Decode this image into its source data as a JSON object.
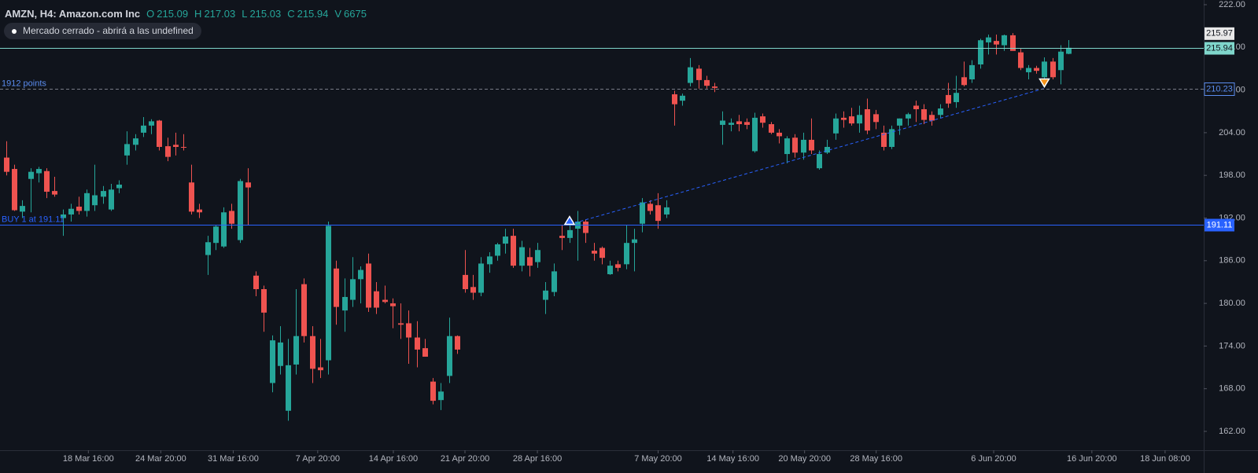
{
  "header": {
    "symbol": "AMZN, H4: Amazon.com Inc",
    "ohlc": [
      {
        "key": "O",
        "value": "215.09"
      },
      {
        "key": "H",
        "value": "217.03"
      },
      {
        "key": "L",
        "value": "215.03"
      },
      {
        "key": "C",
        "value": "215.94"
      },
      {
        "key": "V",
        "value": "6675"
      }
    ],
    "status": "Mercado cerrado - abrirá a las undefined"
  },
  "chart_data": {
    "type": "candlestick",
    "up_color": "#26a69a",
    "down_color": "#ef5350",
    "ohlc": [
      [
        200.5,
        202.8,
        198.0,
        198.5
      ],
      [
        198.9,
        199.5,
        193.0,
        193.1
      ],
      [
        192.9,
        194.5,
        192.0,
        193.7
      ],
      [
        197.5,
        199.0,
        192.8,
        198.5
      ],
      [
        198.3,
        199.2,
        197.0,
        198.9
      ],
      [
        198.6,
        199.0,
        194.8,
        195.7
      ],
      [
        195.8,
        197.8,
        195.0,
        195.3
      ],
      [
        192.0,
        193.2,
        189.5,
        192.5
      ],
      [
        192.5,
        194.0,
        191.5,
        193.3
      ],
      [
        193.6,
        195.0,
        192.5,
        193.0
      ],
      [
        193.0,
        196.0,
        192.2,
        195.5
      ],
      [
        193.8,
        199.5,
        193.0,
        195.2
      ],
      [
        195.0,
        196.5,
        194.0,
        195.8
      ],
      [
        193.2,
        196.8,
        193.0,
        196.0
      ],
      [
        196.2,
        197.3,
        195.5,
        196.7
      ],
      [
        200.8,
        204.2,
        199.5,
        202.4
      ],
      [
        202.3,
        203.8,
        201.5,
        203.2
      ],
      [
        204.0,
        206.2,
        203.4,
        205.0
      ],
      [
        205.0,
        205.9,
        203.8,
        205.6
      ],
      [
        205.7,
        205.8,
        201.5,
        202.0
      ],
      [
        202.1,
        203.3,
        200.0,
        200.6
      ],
      [
        202.3,
        204.0,
        200.8,
        202.0
      ],
      [
        202.0,
        203.8,
        201.5,
        201.9
      ],
      [
        197.0,
        199.5,
        192.5,
        192.9
      ],
      [
        193.2,
        194.0,
        192.0,
        192.8
      ],
      [
        186.8,
        189.5,
        184.0,
        188.6
      ],
      [
        188.5,
        191.0,
        187.5,
        190.8
      ],
      [
        188.0,
        193.5,
        187.8,
        192.8
      ],
      [
        193.0,
        194.0,
        190.5,
        191.2
      ],
      [
        188.9,
        197.5,
        188.5,
        197.2
      ],
      [
        197.0,
        199.0,
        191.0,
        196.3
      ],
      [
        183.9,
        184.5,
        181.0,
        182.0
      ],
      [
        182.0,
        182.5,
        176.0,
        178.7
      ],
      [
        168.8,
        175.5,
        167.5,
        174.8
      ],
      [
        171.2,
        176.8,
        170.0,
        174.5
      ],
      [
        164.9,
        175.0,
        163.5,
        171.3
      ],
      [
        171.4,
        182.0,
        170.0,
        175.4
      ],
      [
        182.7,
        183.5,
        174.5,
        175.4
      ],
      [
        175.4,
        176.8,
        168.8,
        170.8
      ],
      [
        171.0,
        175.0,
        169.5,
        170.6
      ],
      [
        172.0,
        191.5,
        170.0,
        190.9
      ],
      [
        184.9,
        186.0,
        177.0,
        179.5
      ],
      [
        179.0,
        183.5,
        176.0,
        180.9
      ],
      [
        180.5,
        186.5,
        179.5,
        183.4
      ],
      [
        183.4,
        185.2,
        180.0,
        184.7
      ],
      [
        185.6,
        187.0,
        178.8,
        179.4
      ],
      [
        181.7,
        183.0,
        178.5,
        179.4
      ],
      [
        180.5,
        182.5,
        180.0,
        180.2
      ],
      [
        180.0,
        180.7,
        176.5,
        179.6
      ],
      [
        177.2,
        180.0,
        175.0,
        177.0
      ],
      [
        177.2,
        179.0,
        171.5,
        175.2
      ],
      [
        175.2,
        177.5,
        171.0,
        173.5
      ],
      [
        173.7,
        175.0,
        172.5,
        172.5
      ],
      [
        169.0,
        169.5,
        165.8,
        166.3
      ],
      [
        166.4,
        168.8,
        165.0,
        167.6
      ],
      [
        169.8,
        178.0,
        168.8,
        175.4
      ],
      [
        175.4,
        175.5,
        172.9,
        173.5
      ],
      [
        184.0,
        187.5,
        181.5,
        182.0
      ],
      [
        182.3,
        184.0,
        180.5,
        181.5
      ],
      [
        181.5,
        186.5,
        181.0,
        185.6
      ],
      [
        185.5,
        187.2,
        184.3,
        186.6
      ],
      [
        186.7,
        188.5,
        186.0,
        188.3
      ],
      [
        188.4,
        190.5,
        187.0,
        189.4
      ],
      [
        189.5,
        190.5,
        185.0,
        185.3
      ],
      [
        185.3,
        188.8,
        184.5,
        187.9
      ],
      [
        186.5,
        187.8,
        183.8,
        185.3
      ],
      [
        185.8,
        188.5,
        185.0,
        187.5
      ],
      [
        180.5,
        183.0,
        178.5,
        181.8
      ],
      [
        181.6,
        185.6,
        181.0,
        184.5
      ],
      [
        189.5,
        191.0,
        187.5,
        189.2
      ],
      [
        189.2,
        191.5,
        188.5,
        190.3
      ],
      [
        190.5,
        193.0,
        186.0,
        191.5
      ],
      [
        191.5,
        191.8,
        188.5,
        189.9
      ],
      [
        187.4,
        188.5,
        186.0,
        187.0
      ],
      [
        187.8,
        188.0,
        185.5,
        186.4
      ],
      [
        184.1,
        186.0,
        184.0,
        185.3
      ],
      [
        185.5,
        186.0,
        184.5,
        185.0
      ],
      [
        185.5,
        191.0,
        184.8,
        188.5
      ],
      [
        188.5,
        190.5,
        184.5,
        189.0
      ],
      [
        191.2,
        194.8,
        190.0,
        194.2
      ],
      [
        194.0,
        194.5,
        192.5,
        193.0
      ],
      [
        193.8,
        195.5,
        190.5,
        191.6
      ],
      [
        192.5,
        194.5,
        192.0,
        193.5
      ],
      [
        209.4,
        209.9,
        205.0,
        208.0
      ],
      [
        208.5,
        209.5,
        207.8,
        209.2
      ],
      [
        211.0,
        214.5,
        210.5,
        213.2
      ],
      [
        213.0,
        213.5,
        210.2,
        211.4
      ],
      [
        211.4,
        212.0,
        210.2,
        210.6
      ],
      [
        210.5,
        211.0,
        209.7,
        210.3
      ],
      [
        205.1,
        207.0,
        202.3,
        205.7
      ],
      [
        205.1,
        206.0,
        204.2,
        205.4
      ],
      [
        205.6,
        206.5,
        204.2,
        205.2
      ],
      [
        205.5,
        206.0,
        204.5,
        205.1
      ],
      [
        201.4,
        206.8,
        201.2,
        206.1
      ],
      [
        206.3,
        206.7,
        204.7,
        205.4
      ],
      [
        205.2,
        205.5,
        203.8,
        204.0
      ],
      [
        204.0,
        204.5,
        202.5,
        203.5
      ],
      [
        201.0,
        203.5,
        199.7,
        203.2
      ],
      [
        203.3,
        203.8,
        200.5,
        201.2
      ],
      [
        201.2,
        204.0,
        200.2,
        203.0
      ],
      [
        203.0,
        206.0,
        201.0,
        201.5
      ],
      [
        199.0,
        201.5,
        198.8,
        201.0
      ],
      [
        201.2,
        203.0,
        201.0,
        202.0
      ],
      [
        203.9,
        206.7,
        203.0,
        206.0
      ],
      [
        206.1,
        207.0,
        204.7,
        205.8
      ],
      [
        206.3,
        207.5,
        205.0,
        205.3
      ],
      [
        205.3,
        207.8,
        204.0,
        206.5
      ],
      [
        207.3,
        208.8,
        203.8,
        204.3
      ],
      [
        206.6,
        207.2,
        204.5,
        205.5
      ],
      [
        204.0,
        205.0,
        201.5,
        202.0
      ],
      [
        202.0,
        205.0,
        201.7,
        204.5
      ],
      [
        205.0,
        206.0,
        203.7,
        206.0
      ],
      [
        206.0,
        206.8,
        205.0,
        206.6
      ],
      [
        207.8,
        208.5,
        205.5,
        207.3
      ],
      [
        207.3,
        208.0,
        205.2,
        205.8
      ],
      [
        206.5,
        207.0,
        205.0,
        205.7
      ],
      [
        206.5,
        208.0,
        206.0,
        207.4
      ],
      [
        209.3,
        211.0,
        207.5,
        208.1
      ],
      [
        208.3,
        212.0,
        207.5,
        209.6
      ],
      [
        211.8,
        214.0,
        210.5,
        210.7
      ],
      [
        211.5,
        214.2,
        211.0,
        213.5
      ],
      [
        213.6,
        217.2,
        213.0,
        217.0
      ],
      [
        216.7,
        217.8,
        215.0,
        217.4
      ],
      [
        216.9,
        217.8,
        215.0,
        216.4
      ],
      [
        216.3,
        217.8,
        215.5,
        217.7
      ],
      [
        217.7,
        218.0,
        215.6,
        215.5
      ],
      [
        215.3,
        215.8,
        212.8,
        213.1
      ],
      [
        212.5,
        213.5,
        211.5,
        213.1
      ],
      [
        213.1,
        213.4,
        212.3,
        212.7
      ],
      [
        211.8,
        214.6,
        211.0,
        214.0
      ],
      [
        214.0,
        214.5,
        211.5,
        211.8
      ],
      [
        212.8,
        216.3,
        210.8,
        215.4
      ],
      [
        215.09,
        217.03,
        215.03,
        215.94
      ]
    ],
    "xlim": [
      -0.78,
      148.8
    ],
    "xticks": [
      {
        "value": 10.2,
        "label": "18 Mar 16:00"
      },
      {
        "value": 19.2,
        "label": "24 Mar 20:00"
      },
      {
        "value": 28.2,
        "label": "31 Mar 16:00"
      },
      {
        "value": 38.7,
        "label": "7 Apr 20:00"
      },
      {
        "value": 48.1,
        "label": "14 Apr 16:00"
      },
      {
        "value": 57.0,
        "label": "21 Apr 20:00"
      },
      {
        "value": 66.0,
        "label": "28 Apr 16:00"
      },
      {
        "value": 81.0,
        "label": "7 May 20:00"
      },
      {
        "value": 90.3,
        "label": "14 May 16:00"
      },
      {
        "value": 99.2,
        "label": "20 May 20:00"
      },
      {
        "value": 108.1,
        "label": "28 May 16:00"
      },
      {
        "value": 122.7,
        "label": "6 Jun 20:00"
      },
      {
        "value": 134.9,
        "label": "16 Jun 20:00"
      },
      {
        "value": 144.0,
        "label": "18 Jun 08:00"
      }
    ],
    "ylim": [
      159.35,
      222.66
    ],
    "yticks": [
      {
        "value": 162,
        "label": "162.00"
      },
      {
        "value": 168,
        "label": "168.00"
      },
      {
        "value": 174,
        "label": "174.00"
      },
      {
        "value": 180,
        "label": "180.00"
      },
      {
        "value": 186,
        "label": "186.00"
      },
      {
        "value": 192,
        "label": "192.00"
      },
      {
        "value": 198,
        "label": "198.00"
      },
      {
        "value": 204,
        "label": "204.00"
      },
      {
        "value": 210,
        "label": "210.00"
      },
      {
        "value": 216,
        "label": "216.00"
      },
      {
        "value": 222,
        "label": "222.00"
      }
    ],
    "ask": 215.97,
    "price_lines": [
      {
        "value": 215.94,
        "color": "#7fd6cb",
        "style": "solid"
      },
      {
        "value": 210.23,
        "color": "#787b86",
        "style": "dashed",
        "text": "1912 points"
      },
      {
        "value": 191.11,
        "color": "#2962ff",
        "style": "solid",
        "text": "BUY 1 at 191.11"
      }
    ],
    "markers": [
      {
        "x": 70,
        "y": 191.11,
        "kind": "buy",
        "color": "#2962ff"
      },
      {
        "x": 129,
        "y": 210.23,
        "kind": "sell",
        "color": "#f7931a"
      }
    ]
  }
}
